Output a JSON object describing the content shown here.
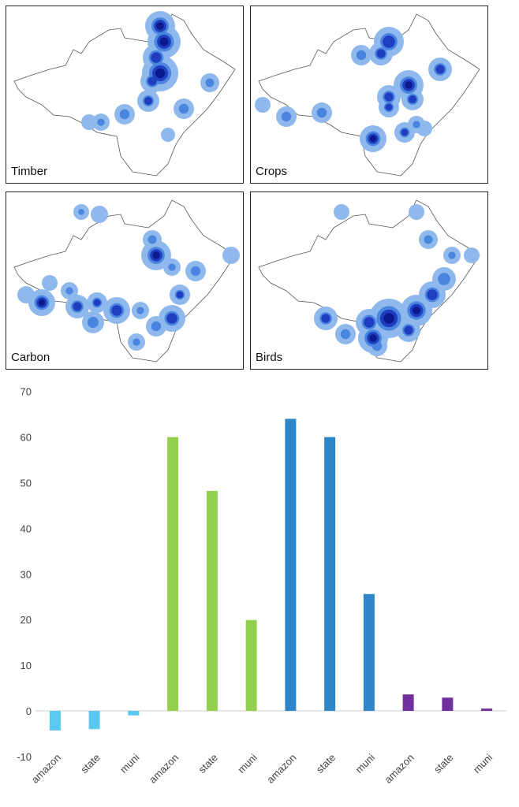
{
  "maps": [
    {
      "label": "Timber"
    },
    {
      "label": "Crops"
    },
    {
      "label": "Carbon"
    },
    {
      "label": "Birds"
    }
  ],
  "colors": {
    "light": "#8fb8ec",
    "mid": "#4a86e0",
    "dark": "#1f3fc0",
    "darkest": "#0a1a8c",
    "outline": "#555555"
  },
  "chart_data": {
    "type": "bar",
    "categories": [
      "amazon",
      "state",
      "muni",
      "amazon",
      "state",
      "muni",
      "amazon",
      "state",
      "muni",
      "amazon",
      "state",
      "muni"
    ],
    "values": [
      -4.3,
      -4.0,
      -1.0,
      60,
      48.2,
      19.9,
      64,
      60,
      25.6,
      3.6,
      2.9,
      0.5
    ],
    "colors": [
      "#5bc8ef",
      "#5bc8ef",
      "#5bc8ef",
      "#92d050",
      "#92d050",
      "#92d050",
      "#2e86c8",
      "#2e86c8",
      "#2e86c8",
      "#7030a0",
      "#7030a0",
      "#7030a0"
    ],
    "yticks": [
      "-10",
      "0",
      "10",
      "20",
      "30",
      "40",
      "50",
      "60",
      "70"
    ],
    "ylim": [
      -10,
      70
    ],
    "title": "",
    "xlabel": "",
    "ylabel": "",
    "grid": false
  }
}
